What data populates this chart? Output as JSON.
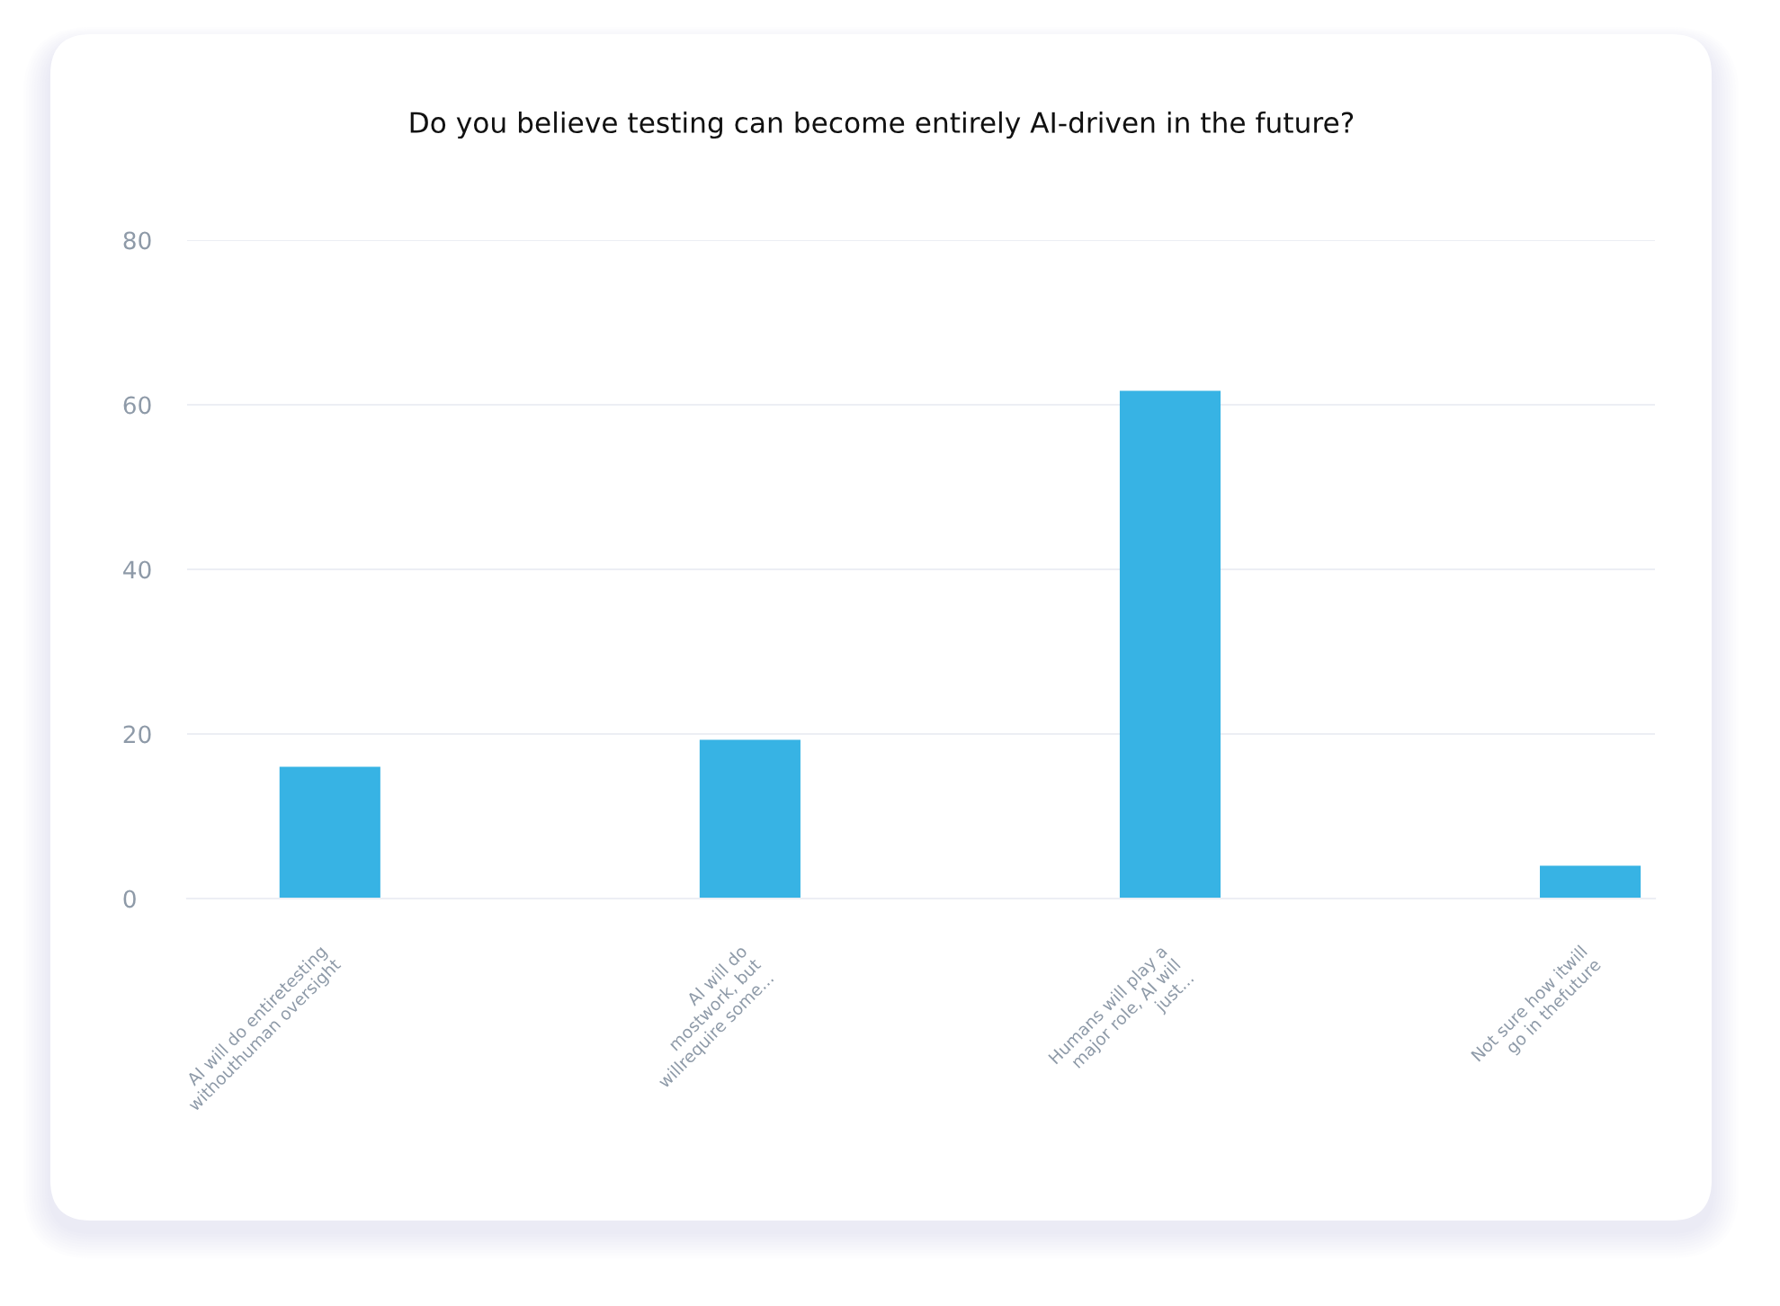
{
  "chart_data": {
    "type": "bar",
    "title": "Do you believe testing can become entirely AI-driven in the future?",
    "categories": [
      "AI will do entiretesting\nwithouthuman oversight",
      "AI will do\nmostwork, but\nwillrequire some...",
      "Humans will play a\nmajor role, AI will\njust...",
      "Not sure how itwill\ngo in thefuture"
    ],
    "values": [
      16,
      19.3,
      61.7,
      4
    ],
    "color": "#37b3e4",
    "ylim": [
      0,
      80
    ],
    "yticks": [
      0,
      20,
      40,
      60,
      80
    ],
    "grid": "y"
  }
}
